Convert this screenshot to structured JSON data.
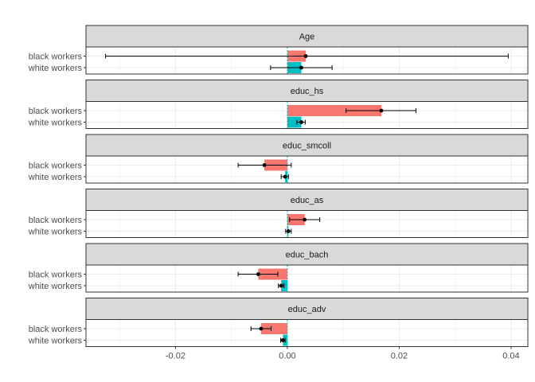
{
  "chart_data": {
    "type": "bar",
    "facet_layout": "vertical-stack",
    "x_ticks": [
      -0.02,
      0.0,
      0.02,
      0.04
    ],
    "x_tick_labels": [
      "-0.02",
      "0.00",
      "0.02",
      "0.04"
    ],
    "xlim": [
      -0.036,
      0.043
    ],
    "xlabel": "",
    "ylabel": "",
    "grid": true,
    "reference_line": 0,
    "categories": [
      "black workers",
      "white workers"
    ],
    "colors": {
      "black workers": "#F8766D",
      "white workers": "#00BFC4",
      "points": "#000000",
      "reference": "#00BFC4"
    },
    "legend": "none",
    "facets": [
      {
        "title": "Age",
        "bars": [
          {
            "category": "black workers",
            "value": 0.0033,
            "lo": -0.0325,
            "hi": 0.0395
          },
          {
            "category": "white workers",
            "value": 0.0025,
            "lo": -0.003,
            "hi": 0.008
          }
        ]
      },
      {
        "title": "educ_hs",
        "bars": [
          {
            "category": "black workers",
            "value": 0.0168,
            "lo": 0.0105,
            "hi": 0.023
          },
          {
            "category": "white workers",
            "value": 0.0025,
            "lo": 0.0017,
            "hi": 0.0032
          }
        ]
      },
      {
        "title": "educ_smcoll",
        "bars": [
          {
            "category": "black workers",
            "value": -0.0041,
            "lo": -0.0088,
            "hi": 0.0007
          },
          {
            "category": "white workers",
            "value": -0.0004,
            "lo": -0.0011,
            "hi": 0.0002
          }
        ]
      },
      {
        "title": "educ_as",
        "bars": [
          {
            "category": "black workers",
            "value": 0.0031,
            "lo": 0.0004,
            "hi": 0.0058
          },
          {
            "category": "white workers",
            "value": 0.0002,
            "lo": -0.0003,
            "hi": 0.0007
          }
        ]
      },
      {
        "title": "educ_bach",
        "bars": [
          {
            "category": "black workers",
            "value": -0.0052,
            "lo": -0.0088,
            "hi": -0.0017
          },
          {
            "category": "white workers",
            "value": -0.0011,
            "lo": -0.0016,
            "hi": -0.0006
          }
        ]
      },
      {
        "title": "educ_adv",
        "bars": [
          {
            "category": "black workers",
            "value": -0.0047,
            "lo": -0.0065,
            "hi": -0.0029
          },
          {
            "category": "white workers",
            "value": -0.0008,
            "lo": -0.0012,
            "hi": -0.0004
          }
        ]
      }
    ]
  }
}
